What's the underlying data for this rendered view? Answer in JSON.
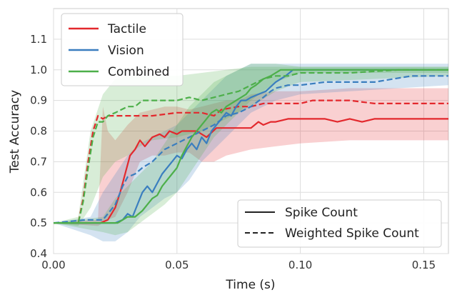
{
  "chart_data": {
    "type": "line",
    "xlabel": "Time (s)",
    "ylabel": "Test Accuracy",
    "xlim": [
      0.0,
      0.16
    ],
    "ylim": [
      0.4,
      1.2
    ],
    "xticks": [
      {
        "value": 0.0,
        "label": "0.00"
      },
      {
        "value": 0.05,
        "label": "0.05"
      },
      {
        "value": 0.1,
        "label": "0.10"
      },
      {
        "value": 0.15,
        "label": "0.15"
      }
    ],
    "yticks": [
      {
        "value": 0.4,
        "label": "0.4"
      },
      {
        "value": 0.5,
        "label": "0.5"
      },
      {
        "value": 0.6,
        "label": "0.6"
      },
      {
        "value": 0.7,
        "label": "0.7"
      },
      {
        "value": 0.8,
        "label": "0.8"
      },
      {
        "value": 0.9,
        "label": "0.9"
      },
      {
        "value": 1.0,
        "label": "1.0"
      },
      {
        "value": 1.1,
        "label": "1.1"
      }
    ],
    "grid": true,
    "legends": {
      "modality": {
        "placement": "top-left",
        "entries": [
          {
            "label": "Tactile",
            "color": "#e3282d"
          },
          {
            "label": "Vision",
            "color": "#3a7ebf"
          },
          {
            "label": "Combined",
            "color": "#4daf4a"
          }
        ]
      },
      "readout": {
        "placement": "bottom-right",
        "entries": [
          {
            "label": "Spike Count",
            "style": "solid"
          },
          {
            "label": "Weighted Spike Count",
            "style": "dashed"
          }
        ]
      }
    },
    "series": [
      {
        "modality": "Tactile",
        "readout": "Spike Count",
        "style": "solid",
        "color": "#e3282d",
        "points": [
          [
            0.0,
            0.5
          ],
          [
            0.019,
            0.5
          ],
          [
            0.022,
            0.51
          ],
          [
            0.025,
            0.55
          ],
          [
            0.027,
            0.6
          ],
          [
            0.029,
            0.66
          ],
          [
            0.031,
            0.72
          ],
          [
            0.033,
            0.74
          ],
          [
            0.035,
            0.77
          ],
          [
            0.037,
            0.75
          ],
          [
            0.04,
            0.78
          ],
          [
            0.043,
            0.79
          ],
          [
            0.045,
            0.78
          ],
          [
            0.047,
            0.8
          ],
          [
            0.05,
            0.79
          ],
          [
            0.052,
            0.8
          ],
          [
            0.055,
            0.8
          ],
          [
            0.058,
            0.8
          ],
          [
            0.062,
            0.78
          ],
          [
            0.066,
            0.81
          ],
          [
            0.07,
            0.81
          ],
          [
            0.075,
            0.81
          ],
          [
            0.08,
            0.81
          ],
          [
            0.083,
            0.83
          ],
          [
            0.085,
            0.82
          ],
          [
            0.088,
            0.83
          ],
          [
            0.09,
            0.83
          ],
          [
            0.095,
            0.84
          ],
          [
            0.1,
            0.84
          ],
          [
            0.11,
            0.84
          ],
          [
            0.115,
            0.83
          ],
          [
            0.12,
            0.84
          ],
          [
            0.125,
            0.83
          ],
          [
            0.13,
            0.84
          ],
          [
            0.14,
            0.84
          ],
          [
            0.16,
            0.84
          ]
        ],
        "band": [
          [
            0.0,
            0.5,
            0.5
          ],
          [
            0.018,
            0.49,
            0.51
          ],
          [
            0.02,
            0.5,
            0.88
          ],
          [
            0.022,
            0.51,
            0.8
          ],
          [
            0.025,
            0.52,
            0.77
          ],
          [
            0.03,
            0.6,
            0.82
          ],
          [
            0.035,
            0.7,
            0.86
          ],
          [
            0.04,
            0.72,
            0.87
          ],
          [
            0.045,
            0.72,
            0.88
          ],
          [
            0.05,
            0.73,
            0.88
          ],
          [
            0.055,
            0.73,
            0.87
          ],
          [
            0.06,
            0.7,
            0.88
          ],
          [
            0.065,
            0.7,
            0.89
          ],
          [
            0.07,
            0.72,
            0.9
          ],
          [
            0.075,
            0.73,
            0.9
          ],
          [
            0.08,
            0.74,
            0.92
          ],
          [
            0.09,
            0.75,
            0.93
          ],
          [
            0.1,
            0.76,
            0.93
          ],
          [
            0.12,
            0.77,
            0.94
          ],
          [
            0.14,
            0.77,
            0.94
          ],
          [
            0.16,
            0.77,
            0.94
          ]
        ]
      },
      {
        "modality": "Tactile",
        "readout": "Weighted Spike Count",
        "style": "dashed",
        "color": "#e3282d",
        "points": [
          [
            0.0,
            0.5
          ],
          [
            0.01,
            0.5
          ],
          [
            0.012,
            0.58
          ],
          [
            0.014,
            0.7
          ],
          [
            0.016,
            0.8
          ],
          [
            0.018,
            0.85
          ],
          [
            0.02,
            0.84
          ],
          [
            0.022,
            0.85
          ],
          [
            0.03,
            0.85
          ],
          [
            0.04,
            0.85
          ],
          [
            0.05,
            0.86
          ],
          [
            0.06,
            0.86
          ],
          [
            0.065,
            0.85
          ],
          [
            0.068,
            0.87
          ],
          [
            0.075,
            0.88
          ],
          [
            0.08,
            0.88
          ],
          [
            0.085,
            0.89
          ],
          [
            0.1,
            0.89
          ],
          [
            0.105,
            0.9
          ],
          [
            0.12,
            0.9
          ],
          [
            0.13,
            0.89
          ],
          [
            0.16,
            0.89
          ]
        ],
        "band": null
      },
      {
        "modality": "Vision",
        "readout": "Spike Count",
        "style": "solid",
        "color": "#3a7ebf",
        "points": [
          [
            0.0,
            0.5
          ],
          [
            0.025,
            0.5
          ],
          [
            0.028,
            0.51
          ],
          [
            0.03,
            0.53
          ],
          [
            0.032,
            0.52
          ],
          [
            0.034,
            0.56
          ],
          [
            0.036,
            0.6
          ],
          [
            0.038,
            0.62
          ],
          [
            0.04,
            0.6
          ],
          [
            0.042,
            0.63
          ],
          [
            0.044,
            0.66
          ],
          [
            0.046,
            0.68
          ],
          [
            0.048,
            0.7
          ],
          [
            0.05,
            0.72
          ],
          [
            0.052,
            0.71
          ],
          [
            0.054,
            0.74
          ],
          [
            0.056,
            0.76
          ],
          [
            0.058,
            0.74
          ],
          [
            0.06,
            0.78
          ],
          [
            0.062,
            0.76
          ],
          [
            0.064,
            0.8
          ],
          [
            0.066,
            0.82
          ],
          [
            0.068,
            0.84
          ],
          [
            0.07,
            0.86
          ],
          [
            0.072,
            0.85
          ],
          [
            0.074,
            0.88
          ],
          [
            0.076,
            0.9
          ],
          [
            0.078,
            0.9
          ],
          [
            0.08,
            0.91
          ],
          [
            0.083,
            0.92
          ],
          [
            0.086,
            0.93
          ],
          [
            0.09,
            0.96
          ],
          [
            0.094,
            0.98
          ],
          [
            0.097,
            1.0
          ],
          [
            0.1,
            1.0
          ],
          [
            0.16,
            1.0
          ]
        ],
        "band": null
      },
      {
        "modality": "Vision",
        "readout": "Weighted Spike Count",
        "style": "dashed",
        "color": "#3a7ebf",
        "points": [
          [
            0.0,
            0.5
          ],
          [
            0.013,
            0.51
          ],
          [
            0.02,
            0.51
          ],
          [
            0.022,
            0.53
          ],
          [
            0.025,
            0.56
          ],
          [
            0.028,
            0.62
          ],
          [
            0.03,
            0.65
          ],
          [
            0.033,
            0.66
          ],
          [
            0.036,
            0.68
          ],
          [
            0.04,
            0.7
          ],
          [
            0.045,
            0.74
          ],
          [
            0.05,
            0.76
          ],
          [
            0.055,
            0.78
          ],
          [
            0.06,
            0.8
          ],
          [
            0.065,
            0.82
          ],
          [
            0.07,
            0.85
          ],
          [
            0.075,
            0.86
          ],
          [
            0.08,
            0.88
          ],
          [
            0.085,
            0.91
          ],
          [
            0.088,
            0.93
          ],
          [
            0.09,
            0.94
          ],
          [
            0.095,
            0.95
          ],
          [
            0.1,
            0.95
          ],
          [
            0.11,
            0.96
          ],
          [
            0.13,
            0.96
          ],
          [
            0.145,
            0.98
          ],
          [
            0.16,
            0.98
          ]
        ],
        "band": [
          [
            0.0,
            0.5,
            0.5
          ],
          [
            0.015,
            0.46,
            0.52
          ],
          [
            0.02,
            0.44,
            0.6
          ],
          [
            0.025,
            0.44,
            0.66
          ],
          [
            0.03,
            0.47,
            0.72
          ],
          [
            0.035,
            0.52,
            0.76
          ],
          [
            0.04,
            0.55,
            0.78
          ],
          [
            0.045,
            0.58,
            0.8
          ],
          [
            0.05,
            0.6,
            0.82
          ],
          [
            0.055,
            0.64,
            0.86
          ],
          [
            0.06,
            0.7,
            0.9
          ],
          [
            0.065,
            0.74,
            0.94
          ],
          [
            0.07,
            0.78,
            0.98
          ],
          [
            0.075,
            0.82,
            1.0
          ],
          [
            0.08,
            0.86,
            1.02
          ],
          [
            0.09,
            0.9,
            1.02
          ],
          [
            0.1,
            0.92,
            1.02
          ],
          [
            0.12,
            0.93,
            1.02
          ],
          [
            0.14,
            0.94,
            1.02
          ],
          [
            0.16,
            0.95,
            1.02
          ]
        ]
      },
      {
        "modality": "Combined",
        "readout": "Spike Count",
        "style": "solid",
        "color": "#4daf4a",
        "points": [
          [
            0.0,
            0.5
          ],
          [
            0.026,
            0.5
          ],
          [
            0.028,
            0.51
          ],
          [
            0.03,
            0.52
          ],
          [
            0.033,
            0.52
          ],
          [
            0.036,
            0.54
          ],
          [
            0.038,
            0.56
          ],
          [
            0.04,
            0.58
          ],
          [
            0.042,
            0.59
          ],
          [
            0.044,
            0.62
          ],
          [
            0.046,
            0.64
          ],
          [
            0.048,
            0.66
          ],
          [
            0.05,
            0.68
          ],
          [
            0.052,
            0.72
          ],
          [
            0.054,
            0.75
          ],
          [
            0.056,
            0.78
          ],
          [
            0.058,
            0.8
          ],
          [
            0.06,
            0.82
          ],
          [
            0.062,
            0.84
          ],
          [
            0.064,
            0.86
          ],
          [
            0.066,
            0.87
          ],
          [
            0.068,
            0.86
          ],
          [
            0.07,
            0.88
          ],
          [
            0.072,
            0.89
          ],
          [
            0.074,
            0.9
          ],
          [
            0.076,
            0.91
          ],
          [
            0.078,
            0.92
          ],
          [
            0.08,
            0.94
          ],
          [
            0.082,
            0.95
          ],
          [
            0.085,
            0.97
          ],
          [
            0.088,
            0.98
          ],
          [
            0.092,
            1.0
          ],
          [
            0.1,
            1.0
          ],
          [
            0.16,
            1.0
          ]
        ],
        "band": [
          [
            0.0,
            0.5,
            0.5
          ],
          [
            0.02,
            0.47,
            0.52
          ],
          [
            0.025,
            0.46,
            0.58
          ],
          [
            0.03,
            0.47,
            0.62
          ],
          [
            0.035,
            0.5,
            0.66
          ],
          [
            0.04,
            0.53,
            0.7
          ],
          [
            0.045,
            0.56,
            0.76
          ],
          [
            0.05,
            0.6,
            0.82
          ],
          [
            0.055,
            0.66,
            0.88
          ],
          [
            0.06,
            0.72,
            0.92
          ],
          [
            0.065,
            0.78,
            0.96
          ],
          [
            0.07,
            0.82,
            0.98
          ],
          [
            0.075,
            0.86,
            1.0
          ],
          [
            0.08,
            0.9,
            1.02
          ],
          [
            0.09,
            0.96,
            1.02
          ],
          [
            0.1,
            0.99,
            1.01
          ],
          [
            0.16,
            0.99,
            1.01
          ]
        ]
      },
      {
        "modality": "Combined",
        "readout": "Weighted Spike Count",
        "style": "dashed",
        "color": "#4daf4a",
        "points": [
          [
            0.0,
            0.5
          ],
          [
            0.01,
            0.5
          ],
          [
            0.012,
            0.57
          ],
          [
            0.014,
            0.68
          ],
          [
            0.016,
            0.78
          ],
          [
            0.018,
            0.83
          ],
          [
            0.02,
            0.83
          ],
          [
            0.022,
            0.85
          ],
          [
            0.025,
            0.86
          ],
          [
            0.03,
            0.88
          ],
          [
            0.033,
            0.88
          ],
          [
            0.036,
            0.9
          ],
          [
            0.04,
            0.9
          ],
          [
            0.05,
            0.9
          ],
          [
            0.055,
            0.91
          ],
          [
            0.06,
            0.9
          ],
          [
            0.065,
            0.91
          ],
          [
            0.07,
            0.92
          ],
          [
            0.075,
            0.93
          ],
          [
            0.08,
            0.95
          ],
          [
            0.085,
            0.97
          ],
          [
            0.09,
            0.98
          ],
          [
            0.095,
            0.98
          ],
          [
            0.1,
            0.99
          ],
          [
            0.12,
            0.99
          ],
          [
            0.14,
            1.0
          ],
          [
            0.16,
            1.0
          ]
        ],
        "band": [
          [
            0.0,
            0.5,
            0.5
          ],
          [
            0.01,
            0.49,
            0.52
          ],
          [
            0.015,
            0.55,
            0.8
          ],
          [
            0.02,
            0.65,
            0.92
          ],
          [
            0.025,
            0.7,
            0.97
          ],
          [
            0.03,
            0.72,
            0.98
          ],
          [
            0.035,
            0.75,
            0.98
          ],
          [
            0.04,
            0.77,
            0.98
          ],
          [
            0.05,
            0.78,
            0.98
          ],
          [
            0.06,
            0.8,
            0.99
          ],
          [
            0.07,
            0.84,
            1.0
          ],
          [
            0.08,
            0.88,
            1.01
          ],
          [
            0.09,
            0.93,
            1.01
          ],
          [
            0.1,
            0.96,
            1.01
          ],
          [
            0.16,
            0.98,
            1.01
          ]
        ]
      }
    ]
  }
}
